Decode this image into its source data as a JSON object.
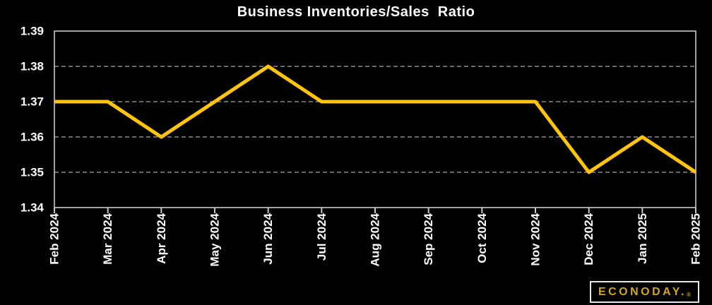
{
  "chart_data": {
    "type": "line",
    "title": "Business Inventories/Sales  Ratio",
    "x": [
      "Feb 2024",
      "Mar 2024",
      "Apr 2024",
      "May 2024",
      "Jun 2024",
      "Jul 2024",
      "Aug 2024",
      "Sep 2024",
      "Oct 2024",
      "Nov 2024",
      "Dec 2024",
      "Jan 2025",
      "Feb 2025"
    ],
    "values": [
      1.37,
      1.37,
      1.36,
      1.37,
      1.38,
      1.37,
      1.37,
      1.37,
      1.37,
      1.37,
      1.35,
      1.36,
      1.35
    ],
    "xlabel": "",
    "ylabel": "",
    "ylim": [
      1.34,
      1.39
    ],
    "yticks": [
      1.34,
      1.35,
      1.36,
      1.37,
      1.38,
      1.39
    ],
    "ytick_labels": [
      "1.34",
      "1.35",
      "1.36",
      "1.37",
      "1.38",
      "1.39"
    ],
    "grid": "horizontal-dashed",
    "legend": "none",
    "line_color": "#FFC40D",
    "background_color": "#000000",
    "text_color": "#FFFFFF",
    "grid_color": "#a8a8a8",
    "border_color": "#c8c8c8"
  },
  "branding": {
    "logo_text": "ECONODAY.",
    "registered_mark": "®",
    "logo_color": "#D2A81E"
  }
}
